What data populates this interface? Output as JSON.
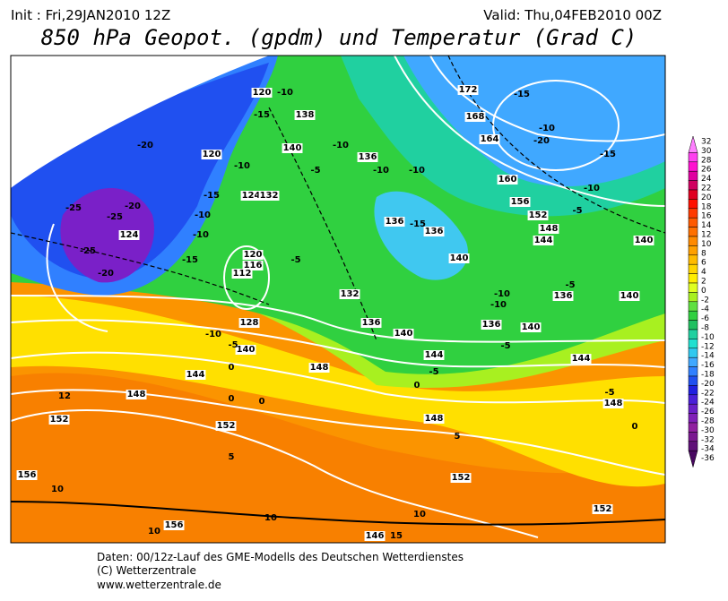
{
  "header": {
    "init": "Init : Fri,29JAN2010 12Z",
    "valid": "Valid: Thu,04FEB2010 00Z",
    "title": "850 hPa Geopot. (gpdm) und Temperatur (Grad C)"
  },
  "colorbar": {
    "levels": [
      32,
      30,
      28,
      26,
      24,
      22,
      20,
      18,
      16,
      14,
      12,
      10,
      8,
      6,
      4,
      2,
      0,
      -2,
      -4,
      -6,
      -8,
      -10,
      -12,
      -14,
      -16,
      -18,
      -20,
      -22,
      -24,
      -26,
      -28,
      -30,
      -32,
      -34,
      -36
    ],
    "colors": [
      "#ff80ff",
      "#ff40f0",
      "#ff10d0",
      "#e000a0",
      "#d00060",
      "#e00020",
      "#ff1000",
      "#ff3a00",
      "#ff5a00",
      "#ff7000",
      "#ff8a00",
      "#ffa000",
      "#ffbb00",
      "#ffd500",
      "#ffee00",
      "#e0ff20",
      "#a8f020",
      "#60e040",
      "#30d040",
      "#20c060",
      "#20d0a0",
      "#20e0d0",
      "#30c8f0",
      "#40a8ff",
      "#3080ff",
      "#2050f0",
      "#2020e0",
      "#4a20d8",
      "#6a20c8",
      "#8020b8",
      "#9020a0",
      "#7a1890",
      "#601078",
      "#480860"
    ]
  },
  "map_labels": [
    "120",
    "-10",
    "138",
    "-15",
    "-20",
    "120",
    "-10",
    "140",
    "-5",
    "-10",
    "136",
    "-10",
    "-10",
    "172",
    "-15",
    "168",
    "164",
    "-10",
    "-20",
    "-15",
    "160",
    "-10",
    "156",
    "152",
    "-5",
    "148",
    "144",
    "140",
    "-25",
    "-25",
    "-20",
    "124",
    "-25",
    "-20",
    "-15",
    "-15",
    "124",
    "132",
    "-10",
    "-10",
    "120",
    "116",
    "112",
    "-5",
    "136",
    "-15",
    "136",
    "140",
    "-10",
    "-10",
    "-5",
    "136",
    "140",
    "132",
    "128",
    "136",
    "140",
    "140",
    "-10",
    "-5",
    "136",
    "140",
    "-5",
    "144",
    "-5",
    "144",
    "0",
    "148",
    "144",
    "0",
    "12",
    "148",
    "152",
    "152",
    "0",
    "0",
    "-5",
    "148",
    "148",
    "5",
    "152",
    "5",
    "156",
    "10",
    "10",
    "10",
    "156",
    "10",
    "146",
    "15",
    "152",
    "0"
  ],
  "footer": {
    "line1": "Daten: 00/12z-Lauf des GME-Modells des Deutschen Wetterdienstes",
    "line2": "(C) Wetterzentrale",
    "line3": "www.wetterzentrale.de"
  }
}
